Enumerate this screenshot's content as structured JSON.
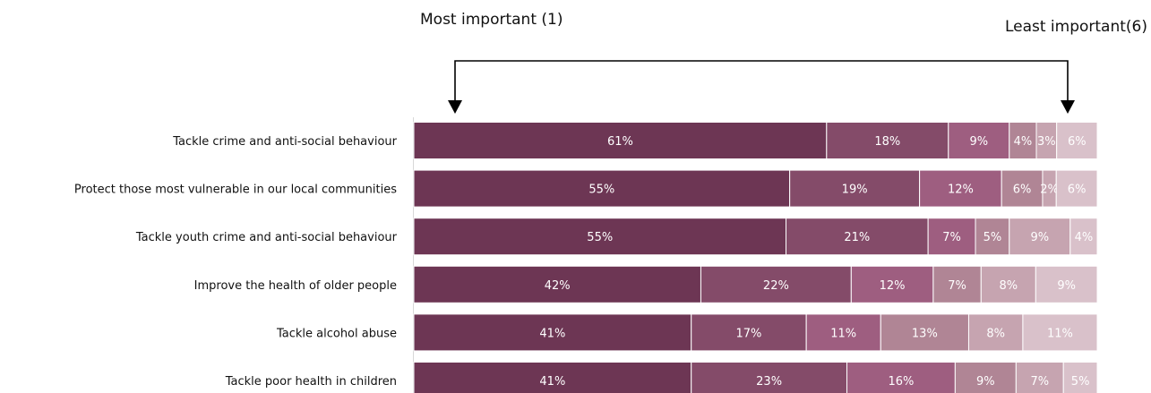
{
  "header": {
    "most_important": "Most important (1)",
    "least_important": "Least important(6)"
  },
  "chart_data": {
    "type": "bar",
    "orientation": "horizontal",
    "stacked": true,
    "percent_stacked": true,
    "categories": [
      "Tackle crime and anti-social behaviour",
      "Protect those most vulnerable in our local communities",
      "Tackle youth crime and anti-social behaviour",
      "Improve the health of older people",
      "Tackle alcohol abuse",
      "Tackle poor health in children"
    ],
    "series": [
      {
        "values": [
          61,
          55,
          55,
          42,
          41,
          41
        ]
      },
      {
        "values": [
          18,
          19,
          21,
          22,
          17,
          23
        ]
      },
      {
        "values": [
          9,
          12,
          7,
          12,
          11,
          16
        ]
      },
      {
        "values": [
          4,
          6,
          5,
          7,
          13,
          9
        ]
      },
      {
        "values": [
          3,
          2,
          9,
          8,
          8,
          7
        ]
      },
      {
        "values": [
          6,
          6,
          4,
          9,
          11,
          5
        ]
      }
    ],
    "data_labels": [
      [
        "61%",
        "18%",
        "9%",
        "4%",
        "3%",
        "6%"
      ],
      [
        "55%",
        "19%",
        "12%",
        "6%",
        "2%",
        "6%"
      ],
      [
        "55%",
        "21%",
        "7%",
        "5%",
        "9%",
        "4%"
      ],
      [
        "42%",
        "22%",
        "12%",
        "7%",
        "8%",
        "9%"
      ],
      [
        "41%",
        "17%",
        "11%",
        "13%",
        "8%",
        "11%"
      ],
      [
        "41%",
        "23%",
        "16%",
        "9%",
        "7%",
        "5%"
      ]
    ],
    "colors": [
      "#6d3654",
      "#844b69",
      "#9e5e80",
      "#b08595",
      "#c6a4b0",
      "#d9c1ca"
    ],
    "label_color": "#ffffff",
    "legend": "none",
    "grid": false,
    "annotation": "arrow from least important (6) to most important (1)"
  }
}
